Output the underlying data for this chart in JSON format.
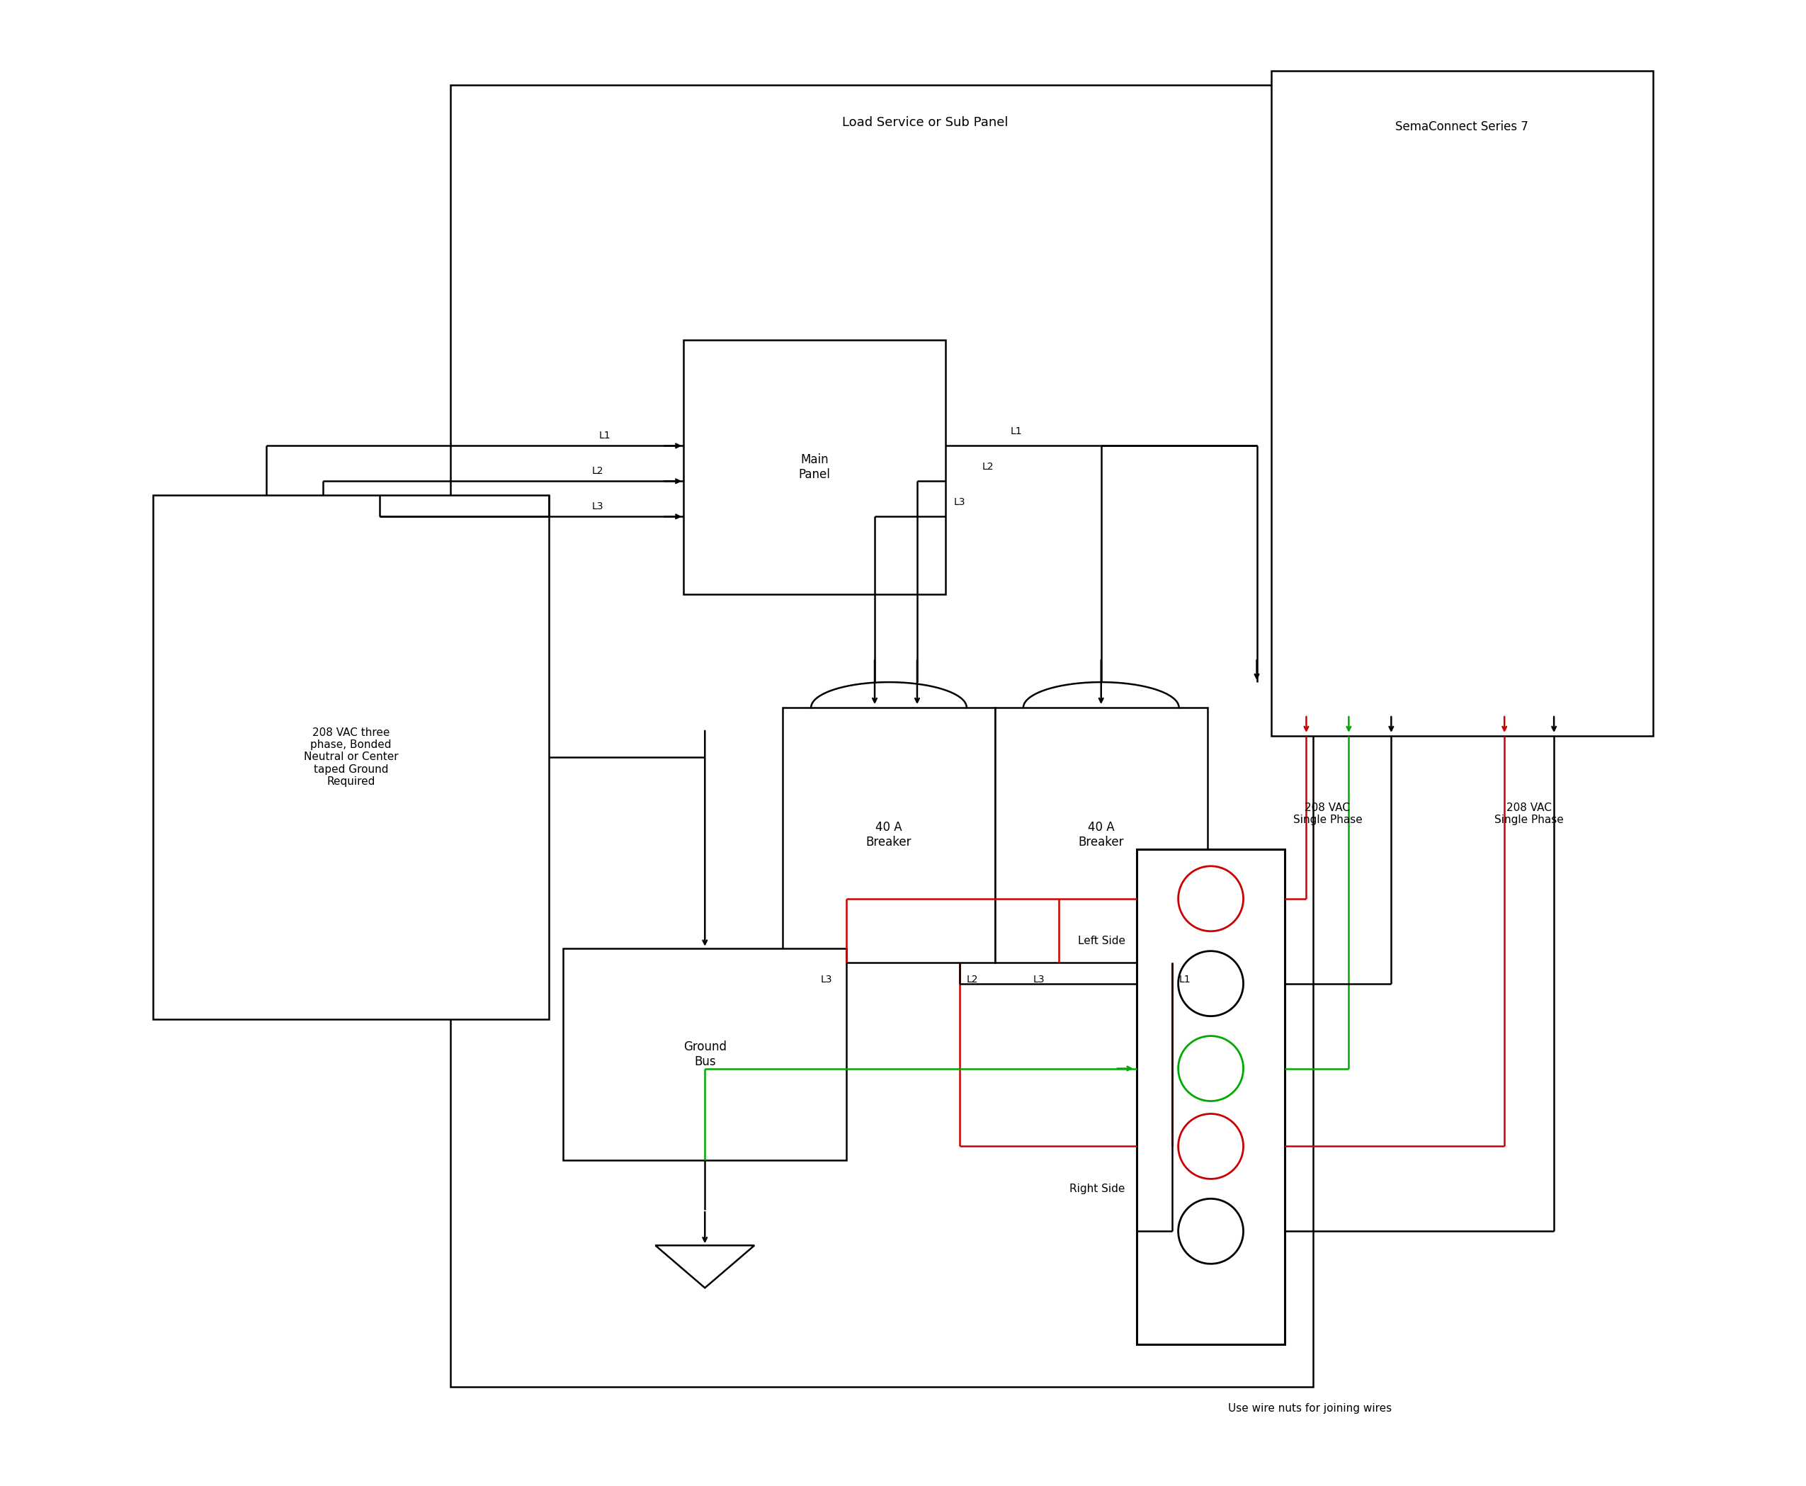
{
  "title": "Load Service or Sub Panel",
  "sema_title": "SemaConnect Series 7",
  "source_label": "208 VAC three\nphase, Bonded\nNeutral or Center\ntaped Ground\nRequired",
  "ground_label": "Ground\nBus",
  "main_panel_label": "Main\nPanel",
  "breaker1_label": "40 A\nBreaker",
  "breaker2_label": "40 A\nBreaker",
  "left_side_label": "Left Side",
  "right_side_label": "Right Side",
  "wire_nuts_label": "Use wire nuts for joining wires",
  "vac_left_label": "208 VAC\nSingle Phase",
  "vac_right_label": "208 VAC\nSingle Phase",
  "bg_color": "#ffffff",
  "line_color": "#000000",
  "red_color": "#cc0000",
  "green_color": "#00aa00"
}
